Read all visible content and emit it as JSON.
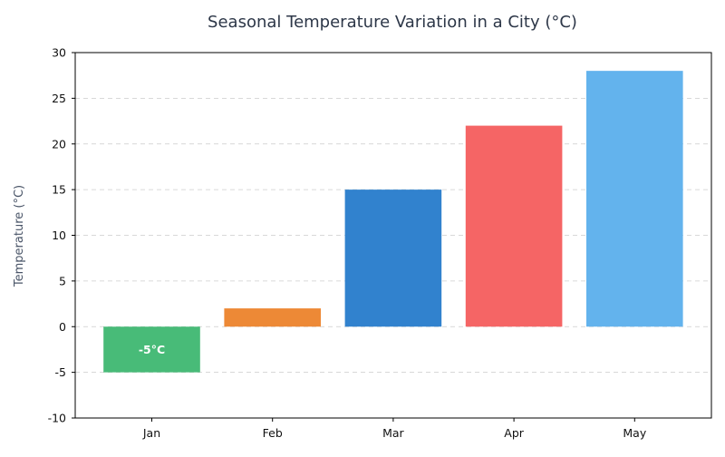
{
  "chart_data": {
    "type": "bar",
    "title": "Seasonal Temperature Variation in a City (°C)",
    "xlabel": "",
    "ylabel": "Temperature (°C)",
    "categories": [
      "Jan",
      "Feb",
      "Mar",
      "Apr",
      "May"
    ],
    "values": [
      -5,
      2,
      15,
      22,
      28
    ],
    "colors": [
      "#48bb78",
      "#ed8936",
      "#3182ce",
      "#f56565",
      "#63b3ed"
    ],
    "data_labels": [
      "-5°C",
      "",
      "",
      "",
      ""
    ],
    "ylim": [
      -10,
      30
    ],
    "yticks": [
      -10,
      -5,
      0,
      5,
      10,
      15,
      20,
      25,
      30
    ],
    "grid": true,
    "legend": "none"
  }
}
